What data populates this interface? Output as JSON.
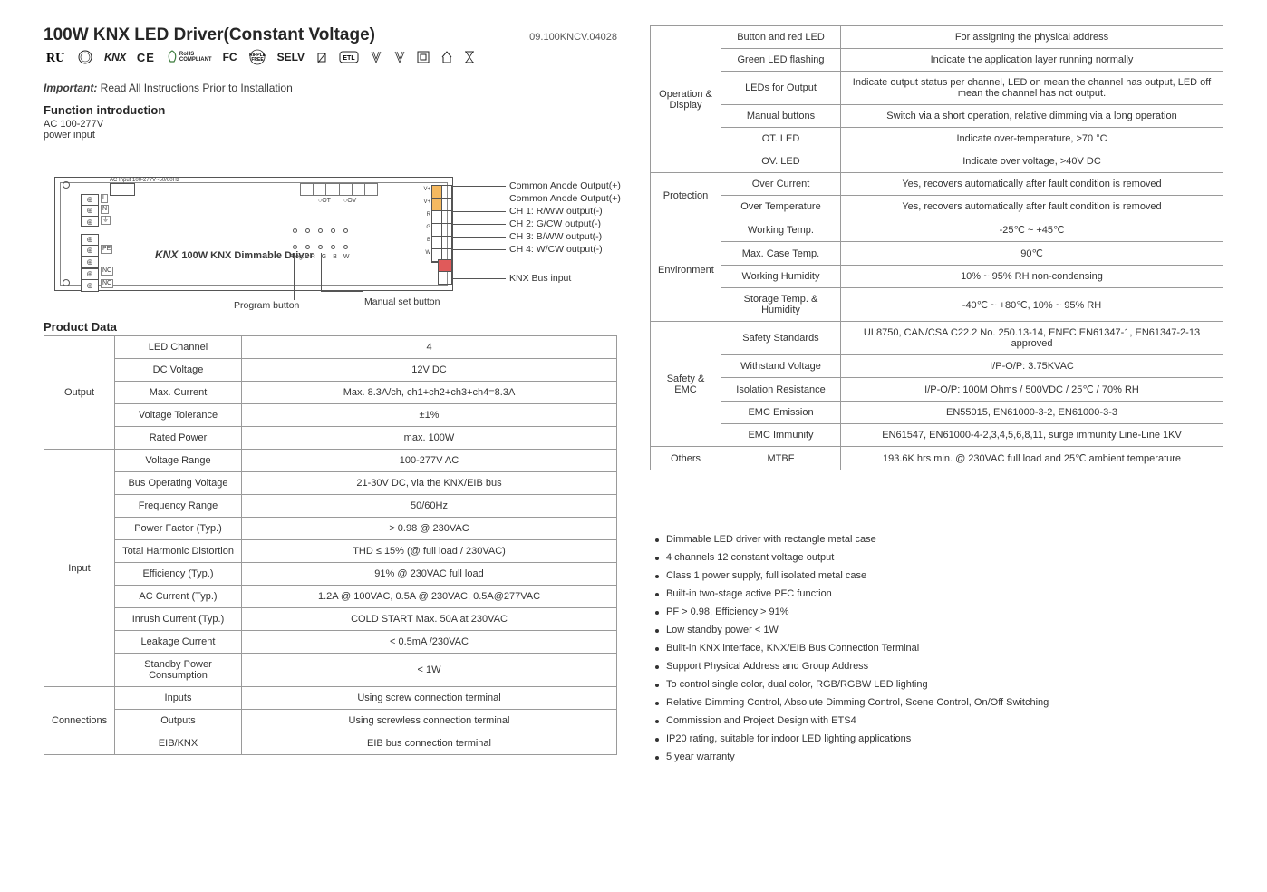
{
  "header": {
    "title": "100W KNX LED Driver(Constant Voltage)",
    "doc_id": "09.100KNCV.04028",
    "important_prefix": "Important:",
    "important_text": " Read All Instructions Prior to Installation",
    "certs": [
      "RU",
      "UL",
      "KNX",
      "CE",
      "RoHS",
      "FCC",
      "RippleFree",
      "SELV",
      "Class2",
      "ETL",
      "V",
      "V",
      "□",
      "OI",
      "X"
    ]
  },
  "sections": {
    "func_intro": "Function introduction",
    "power_in": "AC 100-277V",
    "power_in2": "power input",
    "product_data": "Product Data",
    "prog_btn": "Program button",
    "man_btn": "Manual set button"
  },
  "diagram": {
    "knx_text": "KNX",
    "knx_sub": "100W KNX Dimmable Driver",
    "callouts": {
      "anode1": "Common Anode Output(+)",
      "anode2": "Common Anode Output(+)",
      "ch1": "CH 1: R/WW output(-)",
      "ch2": "CH 2: G/CW output(-)",
      "ch3": "CH 3: B/WW output(-)",
      "ch4": "CH 4: W/CW output(-)",
      "knxbus": "KNX Bus input"
    }
  },
  "table_left": [
    {
      "group": "Output",
      "rows": [
        [
          "LED Channel",
          "4"
        ],
        [
          "DC Voltage",
          "12V DC"
        ],
        [
          "Max. Current",
          "Max. 8.3A/ch, ch1+ch2+ch3+ch4=8.3A"
        ],
        [
          "Voltage Tolerance",
          "±1%"
        ],
        [
          "Rated Power",
          "max. 100W"
        ]
      ]
    },
    {
      "group": "Input",
      "rows": [
        [
          "Voltage Range",
          "100-277V AC"
        ],
        [
          "Bus Operating Voltage",
          "21-30V DC, via the KNX/EIB bus"
        ],
        [
          "Frequency Range",
          "50/60Hz"
        ],
        [
          "Power Factor (Typ.)",
          "> 0.98 @ 230VAC"
        ],
        [
          "Total Harmonic Distortion",
          "THD ≤ 15% (@ full load / 230VAC)"
        ],
        [
          "Efficiency (Typ.)",
          "91% @ 230VAC full load"
        ],
        [
          "AC Current (Typ.)",
          "1.2A @ 100VAC, 0.5A @ 230VAC, 0.5A@277VAC"
        ],
        [
          "Inrush Current (Typ.)",
          "COLD START Max. 50A at 230VAC"
        ],
        [
          "Leakage Current",
          "< 0.5mA /230VAC"
        ],
        [
          "Standby Power Consumption",
          "< 1W"
        ]
      ]
    },
    {
      "group": "Connections",
      "rows": [
        [
          "Inputs",
          "Using screw connection terminal"
        ],
        [
          "Outputs",
          "Using screwless connection terminal"
        ],
        [
          "EIB/KNX",
          "EIB bus connection terminal"
        ]
      ]
    }
  ],
  "table_right": [
    {
      "group": "Operation & Display",
      "rows": [
        [
          "Button and red LED",
          "For assigning the physical address"
        ],
        [
          "Green LED flashing",
          "Indicate the application layer running normally"
        ],
        [
          "LEDs for Output",
          "Indicate output status per channel, LED on mean the channel has output, LED off mean the channel has not output."
        ],
        [
          "Manual buttons",
          "Switch via a short operation, relative dimming via a long operation"
        ],
        [
          "OT. LED",
          "Indicate over-temperature, >70 °C"
        ],
        [
          "OV. LED",
          "Indicate over voltage, >40V DC"
        ]
      ]
    },
    {
      "group": "Protection",
      "rows": [
        [
          "Over Current",
          "Yes, recovers automatically after fault condition is removed"
        ],
        [
          "Over Temperature",
          "Yes, recovers automatically after fault condition is removed"
        ]
      ]
    },
    {
      "group": "Environment",
      "rows": [
        [
          "Working Temp.",
          "-25℃ ~ +45℃"
        ],
        [
          "Max. Case Temp.",
          "90℃"
        ],
        [
          "Working Humidity",
          "10% ~ 95% RH non-condensing"
        ],
        [
          "Storage Temp. & Humidity",
          "-40℃ ~ +80℃, 10% ~ 95% RH"
        ]
      ]
    },
    {
      "group": "Safety & EMC",
      "rows": [
        [
          "Safety Standards",
          "UL8750, CAN/CSA C22.2 No. 250.13-14, ENEC EN61347-1, EN61347-2-13 approved"
        ],
        [
          "Withstand Voltage",
          "I/P-O/P: 3.75KVAC"
        ],
        [
          "Isolation Resistance",
          "I/P-O/P: 100M Ohms / 500VDC / 25℃ / 70% RH"
        ],
        [
          "EMC Emission",
          "EN55015, EN61000-3-2, EN61000-3-3"
        ],
        [
          "EMC Immunity",
          "EN61547, EN61000-4-2,3,4,5,6,8,11, surge immunity Line-Line 1KV"
        ]
      ]
    },
    {
      "group": "Others",
      "rows": [
        [
          "MTBF",
          "193.6K hrs min. @ 230VAC full load and 25℃ ambient temperature"
        ]
      ]
    }
  ],
  "features": [
    "Dimmable LED driver with rectangle metal case",
    "4 channels 12 constant voltage output",
    "Class 1 power supply, full isolated metal case",
    "Built-in two-stage active PFC function",
    "PF > 0.98, Efficiency > 91%",
    "Low standby power < 1W",
    "Built-in KNX interface, KNX/EIB Bus Connection Terminal",
    "Support Physical Address and Group Address",
    "To control single color, dual color, RGB/RGBW LED lighting",
    "Relative Dimming Control, Absolute Dimming Control, Scene Control, On/Off Switching",
    "Commission and Project Design with ETS4",
    "IP20 rating, suitable for indoor LED lighting applications",
    "5 year warranty"
  ]
}
